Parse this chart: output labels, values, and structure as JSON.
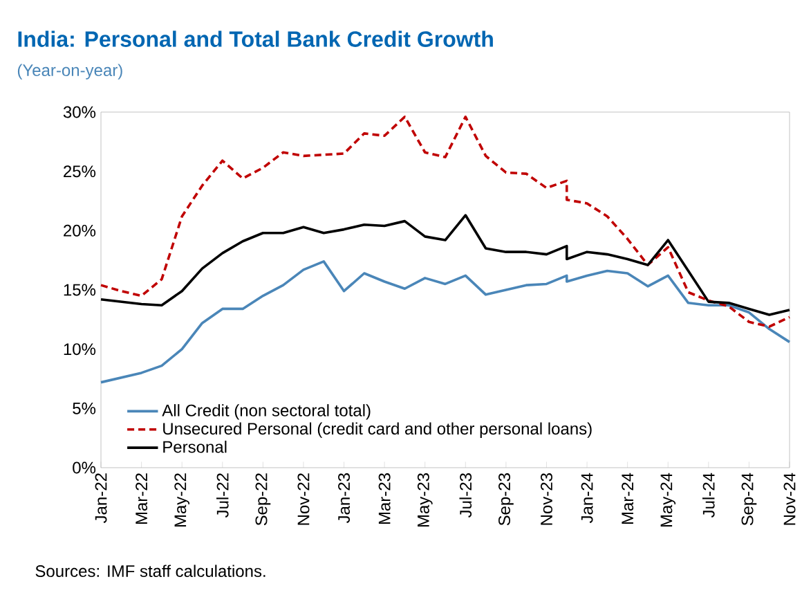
{
  "chart_data": {
    "type": "line",
    "title": "India: Personal and Total Bank Credit Growth",
    "subtitle": "(Year-on-year)",
    "annotations": [
      "Sources: IMF staff calculations."
    ],
    "x": [
      "2022-01",
      "2022-02",
      "2022-03",
      "2022-04",
      "2022-05",
      "2022-06",
      "2022-07",
      "2022-08",
      "2022-09",
      "2022-10",
      "2022-11",
      "2022-12",
      "2023-01",
      "2023-02",
      "2023-03",
      "2023-04",
      "2023-05",
      "2023-06",
      "2023-07",
      "2023-08",
      "2023-09",
      "2023-10",
      "2023-11",
      "2023-12",
      "2023-12",
      "2024-01",
      "2024-02",
      "2024-03",
      "2024-04",
      "2024-05",
      "2024-06",
      "2024-07",
      "2024-08",
      "2024-09",
      "2024-10",
      "2024-11"
    ],
    "series": [
      {
        "name": "All Credit (non sectoral total)",
        "color": "#4a86b8",
        "line_style": "solid",
        "values": [
          7.2,
          7.6,
          8.0,
          8.6,
          10.0,
          12.2,
          13.4,
          13.4,
          14.5,
          15.4,
          16.7,
          17.4,
          14.9,
          16.4,
          15.7,
          15.1,
          16.0,
          15.5,
          16.2,
          14.6,
          15.0,
          15.4,
          15.5,
          16.2,
          15.7,
          16.2,
          16.6,
          16.4,
          15.3,
          16.2,
          13.9,
          13.7,
          13.7,
          13.1,
          11.7,
          10.6
        ]
      },
      {
        "name": "Unsecured Personal  (credit card and other personal loans)",
        "color": "#c00000",
        "line_style": "dashed",
        "values": [
          15.4,
          14.9,
          14.5,
          15.9,
          21.2,
          23.8,
          25.9,
          24.4,
          25.3,
          26.6,
          26.3,
          26.4,
          26.5,
          28.2,
          28.0,
          29.6,
          26.6,
          26.2,
          29.6,
          26.3,
          24.9,
          24.8,
          23.6,
          24.2,
          22.6,
          22.3,
          21.2,
          19.3,
          17.1,
          18.6,
          14.8,
          14.1,
          13.6,
          12.3,
          11.9,
          12.7
        ]
      },
      {
        "name": "Personal",
        "color": "#000000",
        "line_style": "solid",
        "values": [
          14.2,
          14.0,
          13.8,
          13.7,
          14.9,
          16.8,
          18.1,
          19.1,
          19.8,
          19.8,
          20.3,
          19.8,
          20.1,
          20.5,
          20.4,
          20.8,
          19.5,
          19.2,
          21.3,
          18.5,
          18.2,
          18.2,
          18.0,
          18.7,
          17.6,
          18.2,
          18.0,
          17.6,
          17.1,
          19.2,
          16.6,
          14.0,
          13.9,
          13.4,
          12.9,
          13.3
        ]
      }
    ],
    "xlim": [
      "2022-01",
      "2024-11"
    ],
    "xticks": [
      {
        "value": "2022-01",
        "label": "Jan-22"
      },
      {
        "value": "2022-03",
        "label": "Mar-22"
      },
      {
        "value": "2022-05",
        "label": "May-22"
      },
      {
        "value": "2022-07",
        "label": "Jul-22"
      },
      {
        "value": "2022-09",
        "label": "Sep-22"
      },
      {
        "value": "2022-11",
        "label": "Nov-22"
      },
      {
        "value": "2023-01",
        "label": "Jan-23"
      },
      {
        "value": "2023-03",
        "label": "Mar-23"
      },
      {
        "value": "2023-05",
        "label": "May-23"
      },
      {
        "value": "2023-07",
        "label": "Jul-23"
      },
      {
        "value": "2023-09",
        "label": "Sep-23"
      },
      {
        "value": "2023-11",
        "label": "Nov-23"
      },
      {
        "value": "2024-01",
        "label": "Jan-24"
      },
      {
        "value": "2024-03",
        "label": "Mar-24"
      },
      {
        "value": "2024-05",
        "label": "May-24"
      },
      {
        "value": "2024-07",
        "label": "Jul-24"
      },
      {
        "value": "2024-09",
        "label": "Sep-24"
      },
      {
        "value": "2024-11",
        "label": "Nov-24"
      }
    ],
    "ylim": [
      0,
      30
    ],
    "yticks": [
      {
        "value": 0,
        "label": "0%"
      },
      {
        "value": 5,
        "label": "5%"
      },
      {
        "value": 10,
        "label": "10%"
      },
      {
        "value": 15,
        "label": "15%"
      },
      {
        "value": 20,
        "label": "20%"
      },
      {
        "value": 25,
        "label": "25%"
      },
      {
        "value": 30,
        "label": "30%"
      }
    ],
    "grid": false,
    "legend": "bottom left",
    "marker": "none"
  }
}
